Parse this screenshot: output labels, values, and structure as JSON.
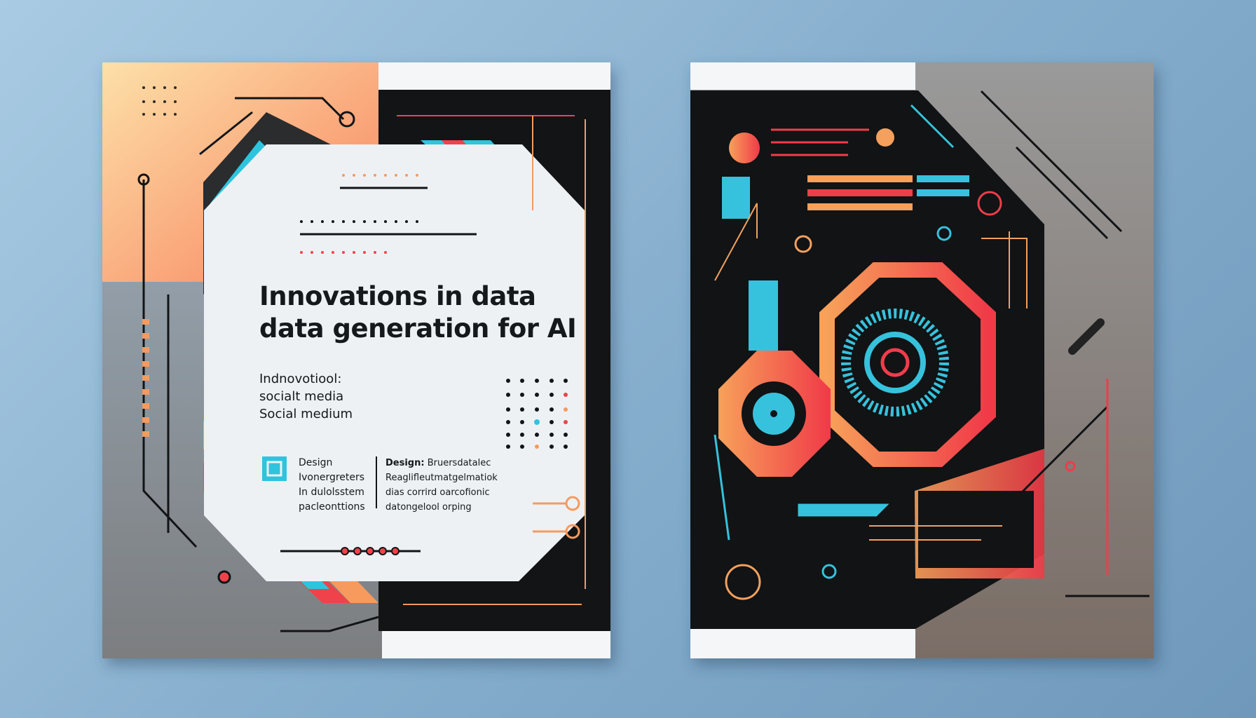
{
  "left_cover": {
    "title_line1": "Innovations in data",
    "title_line2": "data generation for AI",
    "subtitle_lines": [
      "Indnovotiool:",
      "socialt media",
      "Social medium"
    ],
    "design_block_a": [
      "Design",
      "Ivonergreters",
      "In dulolsstem",
      "pacleonttions"
    ],
    "design_block_b": {
      "heading": "Design:",
      "lines": [
        "Bruersdatalec",
        "Reaglifleutmatgelmatiok",
        "dias corrird oarcofionic",
        "datongelool orping"
      ]
    },
    "colors": {
      "orange": "#f79a5e",
      "red": "#f0424a",
      "cyan": "#2ec4de",
      "black": "#121416",
      "panel": "#eef1f4"
    }
  },
  "right_cover": {
    "colors": {
      "orange": "#f5a05c",
      "red": "#ef3d4a",
      "cyan": "#36c2dc",
      "black": "#111315",
      "grey": "#8a8a8a"
    }
  }
}
